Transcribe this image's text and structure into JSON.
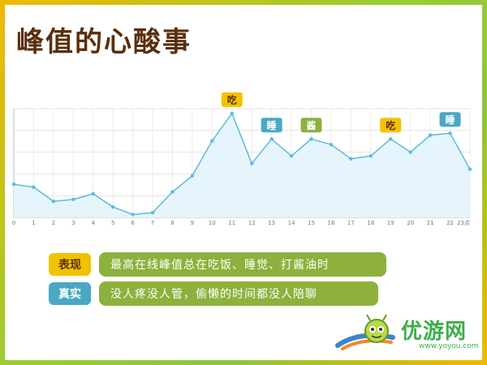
{
  "page": {
    "title": "峰值的心酸事"
  },
  "chart_data": {
    "type": "line",
    "x": [
      0,
      1,
      2,
      3,
      4,
      5,
      6,
      7,
      8,
      9,
      10,
      11,
      12,
      13,
      14,
      15,
      16,
      17,
      18,
      19,
      20,
      21,
      22,
      23
    ],
    "x_tick_labels": [
      "0",
      "1",
      "2",
      "3",
      "4",
      "5",
      "6",
      "7",
      "8",
      "9",
      "10",
      "11",
      "12",
      "13",
      "14",
      "15",
      "16",
      "17",
      "18",
      "19",
      "20",
      "21",
      "22",
      "23点"
    ],
    "values": [
      35,
      32,
      17,
      19,
      25,
      11,
      3,
      5,
      27,
      44,
      81,
      110,
      57,
      83,
      65,
      83,
      77,
      62,
      65,
      83,
      69,
      87,
      89,
      51
    ],
    "ylim": [
      0,
      115
    ],
    "grid": true,
    "color": "#5bbcd9",
    "fill": "#e6f5fb",
    "annotations": [
      {
        "x": 11,
        "label": "吃",
        "color": "#f2c200"
      },
      {
        "x": 13,
        "label": "睡",
        "color": "#4aa8c4"
      },
      {
        "x": 15,
        "label": "酱",
        "color": "#8db13c"
      },
      {
        "x": 19,
        "label": "吃",
        "color": "#f2c200"
      },
      {
        "x": 22,
        "label": "睡",
        "color": "#4aa8c4"
      }
    ]
  },
  "legend_rows": [
    {
      "tag": "表现",
      "tag_bg": "#f2c200",
      "tag_color": "#5a2f0c",
      "text": "最高在线峰值总在吃饭、睡觉、打酱油时"
    },
    {
      "tag": "真实",
      "tag_bg": "#4aa8c4",
      "tag_color": "#ffffff",
      "text": "没人疼没人管，偷懒的时间都没人陪聊"
    }
  ],
  "logo": {
    "name": "优游网",
    "url": "www.yoyou.com"
  }
}
